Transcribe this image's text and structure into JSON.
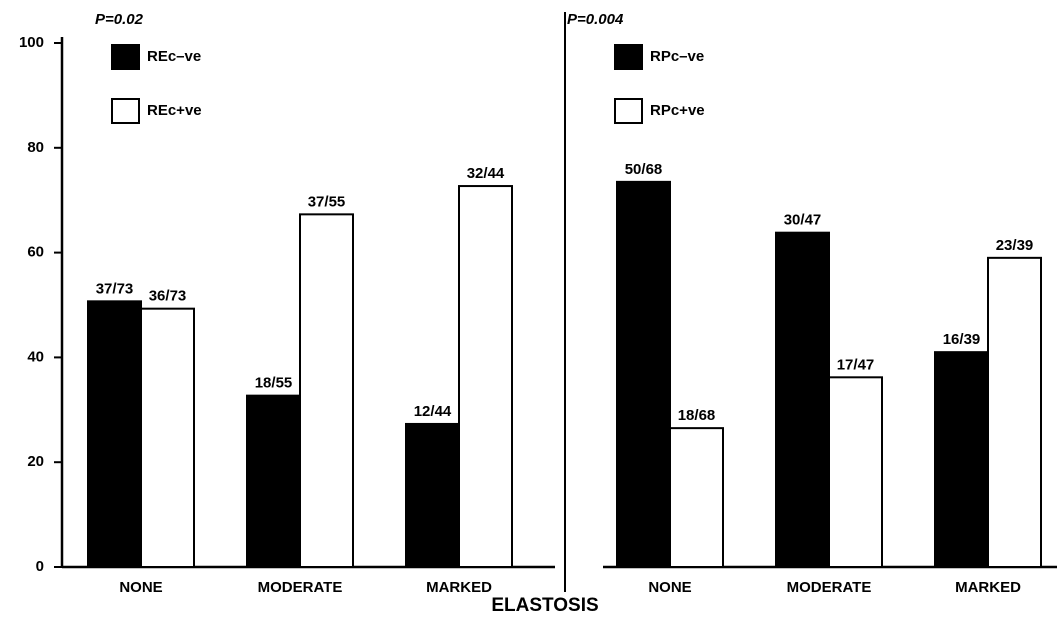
{
  "xlabel": "ELASTOSIS",
  "chart_data": [
    {
      "type": "bar",
      "annotation": "P=0.02",
      "categories": [
        "NONE",
        "MODERATE",
        "MARKED"
      ],
      "series": [
        {
          "name": "REc–ve",
          "color": "#000000",
          "values": [
            50.7,
            32.7,
            27.3
          ],
          "value_labels": [
            "37/73",
            "18/55",
            "12/44"
          ]
        },
        {
          "name": "REc+ve",
          "color": "#ffffff",
          "values": [
            49.3,
            67.3,
            72.7
          ],
          "value_labels": [
            "36/73",
            "37/55",
            "32/44"
          ]
        }
      ],
      "ylim": [
        0,
        100
      ],
      "yticks": [
        0,
        20,
        40,
        60,
        80,
        100
      ]
    },
    {
      "type": "bar",
      "annotation": "P=0.004",
      "categories": [
        "NONE",
        "MODERATE",
        "MARKED"
      ],
      "series": [
        {
          "name": "RPc–ve",
          "color": "#000000",
          "values": [
            73.5,
            63.8,
            41.0
          ],
          "value_labels": [
            "50/68",
            "30/47",
            "16/39"
          ]
        },
        {
          "name": "RPc+ve",
          "color": "#ffffff",
          "values": [
            26.5,
            36.2,
            59.0
          ],
          "value_labels": [
            "18/68",
            "17/47",
            "23/39"
          ]
        }
      ],
      "ylim": [
        0,
        100
      ]
    }
  ]
}
